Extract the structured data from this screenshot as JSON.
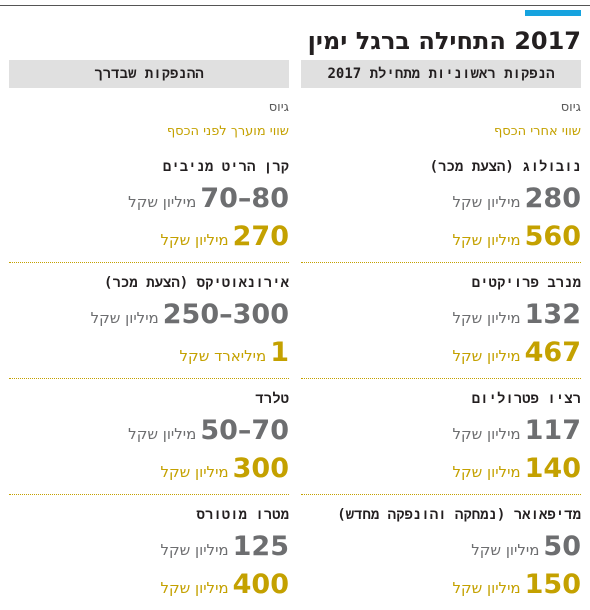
{
  "title": "2017 התחילה ברגל ימין",
  "accent_color": "#16a3df",
  "gold_color": "#c4a100",
  "columns": [
    {
      "header": "הנפקות ראשוניות מתחילת 2017",
      "legend_raised": "גיוס",
      "legend_value": "שווי אחרי הכסף",
      "entries": [
        {
          "name": "נובולוג (הצעת מכר)",
          "raised": "280",
          "raised_unit": "מיליון שקל",
          "value": "560",
          "value_unit": "מיליון שקל"
        },
        {
          "name": "מנרב פרויקטים",
          "raised": "132",
          "raised_unit": "מיליון שקל",
          "value": "467",
          "value_unit": "מיליון שקל"
        },
        {
          "name": "רציו פטרוליום",
          "raised": "117",
          "raised_unit": "מיליון שקל",
          "value": "140",
          "value_unit": "מיליון שקל"
        },
        {
          "name": "מדיפאואר (נמחקה והונפקה מחדש)",
          "raised": "50",
          "raised_unit": "מיליון שקל",
          "value": "150",
          "value_unit": "מיליון שקל"
        }
      ]
    },
    {
      "header": "ההנפקות שבדרך",
      "legend_raised": "גיוס",
      "legend_value": "שווי מוערך לפני הכסף",
      "entries": [
        {
          "name": "קרן הריט מניבים",
          "raised": "80–70",
          "raised_unit": "מיליון שקל",
          "value": "270",
          "value_unit": "מיליון שקל"
        },
        {
          "name": "אירונאוטיקס (הצעת מכר)",
          "raised": "300–250",
          "raised_unit": "מיליון שקל",
          "value": "1",
          "value_unit": "מיליארד שקל"
        },
        {
          "name": "טלרד",
          "raised": "70–50",
          "raised_unit": "מיליון שקל",
          "value": "300",
          "value_unit": "מיליון שקל"
        },
        {
          "name": "מטרו מוטורס",
          "raised": "125",
          "raised_unit": "מיליון שקל",
          "value": "400",
          "value_unit": "מיליון שקל"
        }
      ]
    }
  ]
}
